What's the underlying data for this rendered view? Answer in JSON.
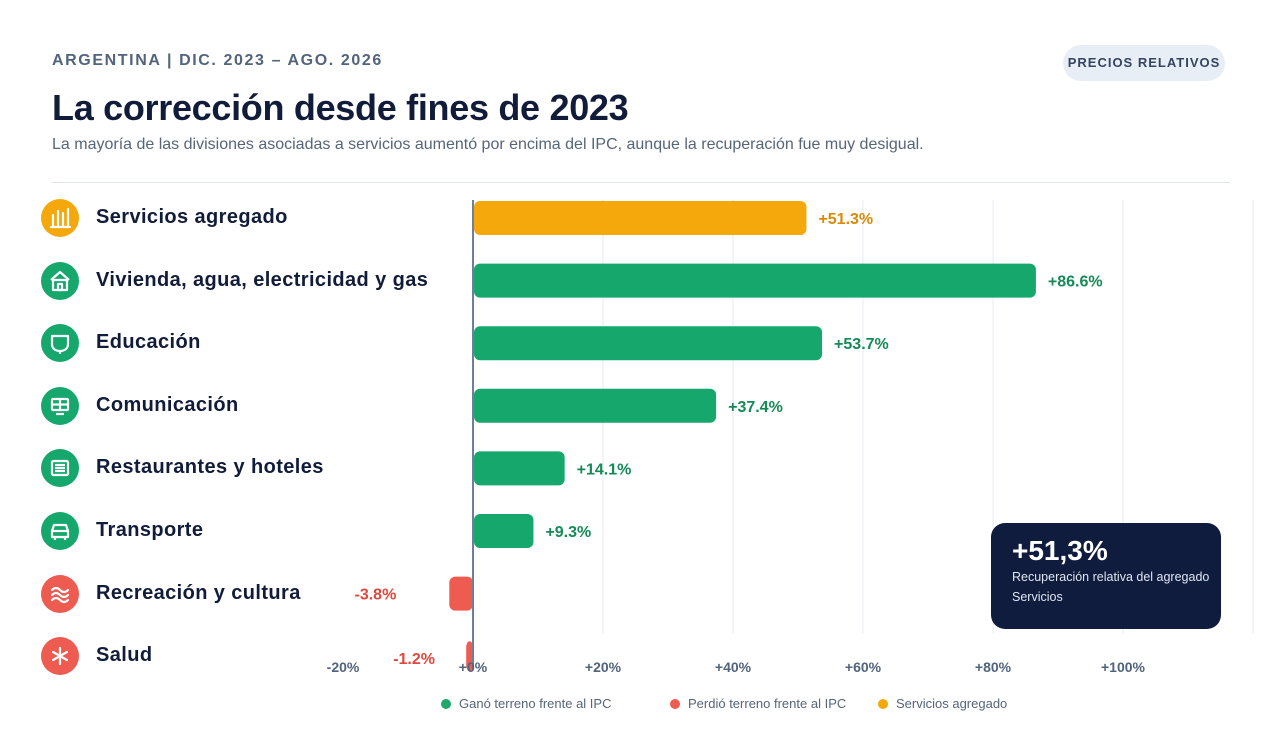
{
  "header": {
    "eyebrow": "ARGENTINA | DIC. 2023 – AGO. 2026",
    "badge": "PRECIOS RELATIVOS",
    "title": "La corrección desde fines de 2023",
    "subtitle": "La mayoría de las divisiones asociadas a servicios aumentó por encima del IPC, aunque la recuperación fue muy desigual."
  },
  "rows": [
    {
      "label": "Servicios agregado",
      "icon": "bar-chart-icon",
      "category": "aggregate"
    },
    {
      "label": "Vivienda, agua, electricidad y gas",
      "icon": "house-icon",
      "category": "gain"
    },
    {
      "label": "Educación",
      "icon": "book-icon",
      "category": "gain"
    },
    {
      "label": "Comunicación",
      "icon": "monitor-icon",
      "category": "gain"
    },
    {
      "label": "Restaurantes y hoteles",
      "icon": "menu-icon",
      "category": "gain"
    },
    {
      "label": "Transporte",
      "icon": "bus-icon",
      "category": "gain"
    },
    {
      "label": "Recreación y cultura",
      "icon": "wave-icon",
      "category": "loss"
    },
    {
      "label": "Salud",
      "icon": "medical-star-icon",
      "category": "loss"
    }
  ],
  "chart_data": {
    "type": "bar",
    "orientation": "horizontal",
    "categories": [
      "Servicios agregado",
      "Vivienda, agua, electricidad y gas",
      "Educación",
      "Comunicación",
      "Restaurantes y hoteles",
      "Transporte",
      "Recreación y cultura",
      "Salud"
    ],
    "values": [
      51.3,
      86.6,
      53.7,
      37.4,
      14.1,
      9.3,
      -3.8,
      -1.2
    ],
    "value_labels": [
      "+51.3%",
      "+86.6%",
      "+53.7%",
      "+37.4%",
      "+14.1%",
      "+9.3%",
      "-3.8%",
      "-1.2%"
    ],
    "xlim": [
      -20,
      120
    ],
    "xticks": [
      -20,
      0,
      20,
      40,
      60,
      80,
      100
    ],
    "xtick_labels": [
      "-20%",
      "+0%",
      "+20%",
      "+40%",
      "+60%",
      "+80%",
      "+100%"
    ],
    "grid": true,
    "legend_position": "bottom"
  },
  "legend": [
    {
      "label": "Ganó terreno frente al IPC",
      "color": "#1ea86a"
    },
    {
      "label": "Perdió terreno frente al IPC",
      "color": "#ee5b50"
    },
    {
      "label": "Servicios agregado",
      "color": "#f5a80c"
    }
  ],
  "callout": {
    "value": "+51,3%",
    "note": "Recuperación relativa del agregado",
    "note2": "Servicios"
  },
  "colors": {
    "gain": "#15a76b",
    "gain_text": "#148a56",
    "loss": "#ee5b50",
    "loss_text": "#e0483d",
    "aggregate": "#f5a80c",
    "aggregate_text": "#d98a07",
    "axis": "#6e7f9b",
    "grid": "#e4e9f0"
  }
}
